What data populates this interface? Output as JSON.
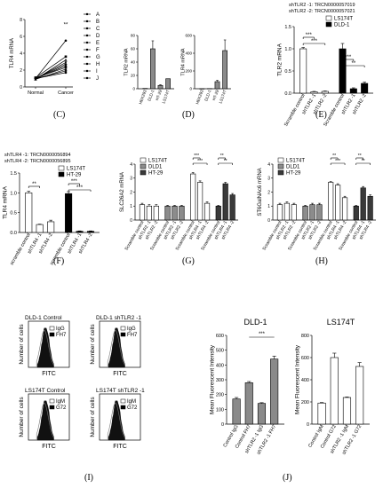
{
  "panel_labels": [
    "(C)",
    "(D)",
    "(E)",
    "(F)",
    "(G)",
    "(H)",
    "(I)",
    "(J)"
  ],
  "shrna_ids": {
    "tlr2": [
      "shTLR2 -1: TRCN0000057019",
      "shTLR2 -2: TRCN0000057021"
    ],
    "tlr4": [
      "shTLR4 -1: TRCN0000056894",
      "shTLR4 -2: TRCN0000056895"
    ]
  },
  "flow_titles": [
    "DLD-1 Control",
    "DLD-1 shTLR2 -1",
    "LS174T Control",
    "LS174T shTLR2 -1"
  ],
  "chart_data": [
    {
      "id": "C",
      "type": "line",
      "ylabel": "TLR4 mRNA",
      "categories": [
        "Normal",
        "Cancer"
      ],
      "ylim": [
        0,
        8
      ],
      "yticks": [
        0,
        2,
        4,
        6,
        8
      ],
      "significance": "**",
      "series": [
        {
          "name": "A",
          "values": [
            1.0,
            5.5
          ]
        },
        {
          "name": "B",
          "values": [
            1.1,
            3.6
          ]
        },
        {
          "name": "C",
          "values": [
            0.9,
            3.2
          ]
        },
        {
          "name": "D",
          "values": [
            1.0,
            2.9
          ]
        },
        {
          "name": "E",
          "values": [
            1.0,
            2.7
          ]
        },
        {
          "name": "F",
          "values": [
            1.0,
            2.5
          ]
        },
        {
          "name": "G",
          "values": [
            1.1,
            2.3
          ]
        },
        {
          "name": "H",
          "values": [
            0.9,
            2.1
          ]
        },
        {
          "name": "I",
          "values": [
            1.0,
            1.9
          ]
        },
        {
          "name": "J",
          "values": [
            1.0,
            1.7
          ]
        }
      ]
    },
    {
      "id": "D1",
      "type": "bar",
      "ylabel": "TLR2 mRNA",
      "categories": [
        "HEK293",
        "DLD-1",
        "HT-29",
        "LS174T"
      ],
      "values": [
        0.5,
        60,
        5,
        15
      ],
      "errors": [
        0,
        12,
        1,
        0
      ],
      "ylim": [
        0,
        80
      ],
      "yticks": [
        0,
        20,
        40,
        60,
        80
      ]
    },
    {
      "id": "D2",
      "type": "bar",
      "ylabel": "TLR4 mRNA",
      "categories": [
        "HEK293",
        "DLD-1",
        "HT-29",
        "LS174T"
      ],
      "values": [
        0.5,
        2,
        80,
        430
      ],
      "errors": [
        0,
        0,
        15,
        120
      ],
      "ylim": [
        0,
        600
      ],
      "yticks": [
        0,
        200,
        400,
        600
      ]
    },
    {
      "id": "E",
      "type": "bar",
      "ylabel": "TLR2 mRNA",
      "categories": [
        "Scramble control",
        "shTLR2 -1",
        "shTLR2 -2",
        "Scramble control",
        "shTLR2 -1",
        "shTLR2 -2"
      ],
      "series_names": [
        "LS174T",
        "DLD-1"
      ],
      "series_index": [
        0,
        0,
        0,
        1,
        1,
        1
      ],
      "values": [
        1.0,
        0.03,
        0.04,
        1.0,
        0.1,
        0.22
      ],
      "errors": [
        0.03,
        0.01,
        0.01,
        0.12,
        0.02,
        0.03
      ],
      "ylim": [
        0,
        1.5
      ],
      "yticks": [
        0.0,
        0.5,
        1.0,
        1.5
      ],
      "significance": [
        "***",
        "***",
        "***",
        "**"
      ]
    },
    {
      "id": "F",
      "type": "bar",
      "ylabel": "TLR4 mRNA",
      "categories": [
        "scramble control",
        "shTLR4 -1",
        "shTLR4 -2",
        "scramble control",
        "shTLR4 -1",
        "shTLR4 -2"
      ],
      "series_names": [
        "LS174T",
        "HT-29"
      ],
      "series_index": [
        0,
        0,
        0,
        1,
        1,
        1
      ],
      "values": [
        1.0,
        0.2,
        0.27,
        0.98,
        0.03,
        0.03
      ],
      "errors": [
        0.04,
        0.01,
        0.04,
        0.05,
        0.01,
        0.01
      ],
      "ylim": [
        0,
        1.5
      ],
      "yticks": [
        0.0,
        0.5,
        1.0,
        1.5
      ],
      "significance": [
        "**",
        "***",
        "***"
      ]
    },
    {
      "id": "G",
      "type": "bar",
      "ylabel": "SLC26A2 mRNA",
      "categories": [
        "Scramble control",
        "shTLR2 -1",
        "shTLR2 -2",
        "Scramble control",
        "shTLR2 -1",
        "shTLR2 -2",
        "Scramble control",
        "shTLR4 -1",
        "shTLR4 -2",
        "Scramble control",
        "shTLR4 -1",
        "shTLR4 -2"
      ],
      "series_names": [
        "LS174T",
        "DLD1",
        "HT-29"
      ],
      "series_index": [
        0,
        0,
        0,
        1,
        1,
        1,
        0,
        0,
        0,
        2,
        2,
        2
      ],
      "values": [
        1.1,
        1.0,
        1.0,
        1.0,
        1.0,
        1.0,
        3.3,
        2.7,
        1.2,
        1.0,
        2.6,
        1.8
      ],
      "errors": [
        0.1,
        0.1,
        0.1,
        0.05,
        0.05,
        0.05,
        0.1,
        0.1,
        0.1,
        0.05,
        0.1,
        0.1
      ],
      "ylim": [
        0,
        4
      ],
      "yticks": [
        0,
        1,
        2,
        3,
        4
      ],
      "significance": [
        "***",
        "***",
        "**",
        "**"
      ]
    },
    {
      "id": "H",
      "type": "bar",
      "ylabel": "ST6GalNAc6 mRNA",
      "categories": [
        "Scramble control",
        "shTLR2 -1",
        "shTLR2 -2",
        "Scramble control",
        "shTLR2 -1",
        "shTLR2 -2",
        "Scramble control",
        "shTLR4 -1",
        "shTLR4 -2",
        "Scramble control",
        "shTLR4 -1",
        "shTLR4 -2"
      ],
      "series_names": [
        "LS174T",
        "DLD1",
        "HT-29"
      ],
      "series_index": [
        0,
        0,
        0,
        1,
        1,
        1,
        0,
        0,
        0,
        2,
        2,
        2
      ],
      "values": [
        1.1,
        1.2,
        1.1,
        1.0,
        1.1,
        1.1,
        2.7,
        2.5,
        1.6,
        1.0,
        2.3,
        1.7
      ],
      "errors": [
        0.1,
        0.1,
        0.1,
        0.05,
        0.1,
        0.1,
        0.05,
        0.1,
        0.1,
        0.05,
        0.1,
        0.1
      ],
      "ylim": [
        0,
        4
      ],
      "yticks": [
        0,
        1,
        2,
        3,
        4
      ],
      "significance": [
        "**",
        "***",
        "**",
        "**"
      ]
    },
    {
      "id": "J1",
      "type": "bar",
      "title": "DLD-1",
      "ylabel": "Mean Fluorescent Intensity",
      "categories": [
        "Control IgG",
        "Control FH7",
        "shTLR2 -1 IgG",
        "shTLR2 -1 FH7"
      ],
      "values": [
        170,
        280,
        140,
        440
      ],
      "errors": [
        10,
        8,
        5,
        20
      ],
      "ylim": [
        0,
        600
      ],
      "yticks": [
        0,
        100,
        200,
        300,
        400,
        500,
        600
      ],
      "significance": "***"
    },
    {
      "id": "J2",
      "type": "bar",
      "title": "LS174T",
      "ylabel": "Mean Fluorescent Intensity",
      "categories": [
        "Control IgM",
        "Control G72",
        "shTLR2 -1 IgM",
        "shTLR2 -1 G72"
      ],
      "values": [
        190,
        600,
        240,
        520
      ],
      "errors": [
        5,
        40,
        5,
        35
      ],
      "ylim": [
        0,
        800
      ],
      "yticks": [
        0,
        200,
        400,
        600,
        800
      ]
    }
  ],
  "flow": {
    "ylabel": "Number of cells",
    "xlabel": "FITC",
    "legends": [
      [
        "IgG",
        "FH7"
      ],
      [
        "IgG",
        "FH7"
      ],
      [
        "IgM",
        "G72"
      ],
      [
        "IgM",
        "G72"
      ]
    ]
  },
  "colors": {
    "ls174t": "#ffffff",
    "dld1": "#000000",
    "dld1_gray": "#8c8c8c",
    "ht29": "#3a3a3a",
    "bar_gray": "#8a8a8a"
  }
}
